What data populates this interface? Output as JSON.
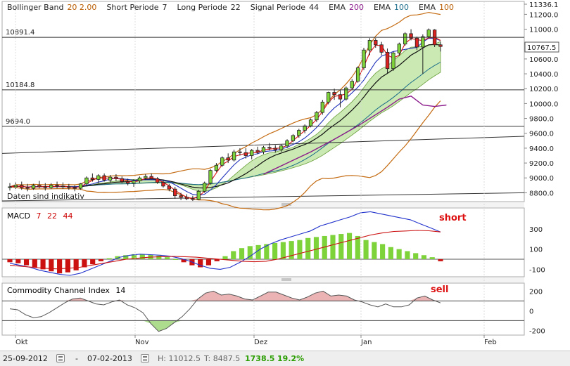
{
  "header": {
    "indicators": [
      {
        "label": "Bollinger Band",
        "params": "20  2.00",
        "color": "#b85c00"
      },
      {
        "label": "Short Periode",
        "params": "7",
        "color": "#222222"
      },
      {
        "label": "Long Periode",
        "params": "22",
        "color": "#222222"
      },
      {
        "label": "Signal Periode",
        "params": "44",
        "color": "#222222"
      },
      {
        "label": "EMA",
        "params": "200",
        "color": "#8b1a8b"
      },
      {
        "label": "EMA",
        "params": "100",
        "color": "#1a6b8a"
      },
      {
        "label": "EMA",
        "params": "100",
        "color": "#b85c00"
      }
    ]
  },
  "notice": "Daten sind indikativ",
  "price_panel": {
    "y_ticks": [
      "11336.1",
      "11200.0",
      "11000.0",
      "10800.0",
      "10600.0",
      "10400.0",
      "10200.0",
      "10000.0",
      "9800.0",
      "9600.0",
      "9400.0",
      "9200.0",
      "9000.0",
      "8800.0"
    ],
    "h_levels": [
      {
        "label": "10891.4",
        "value": 10891.4
      },
      {
        "label": "10184.8",
        "value": 10184.8
      },
      {
        "label": "9694.0",
        "value": 9694.0
      }
    ],
    "current_price": "10767.5"
  },
  "macd_panel": {
    "title": "MACD",
    "params": [
      "7",
      "22",
      "44"
    ],
    "param_color": "#cc0000",
    "y_ticks": [
      "300",
      "100",
      "-100"
    ],
    "annotation": "short"
  },
  "cci_panel": {
    "title": "Commodity Channel Index",
    "param": "14",
    "y_ticks": [
      "200",
      "0",
      "-200"
    ],
    "annotation": "sell"
  },
  "x_axis": {
    "labels": [
      "Okt",
      "Nov",
      "Dez",
      "Jan",
      "Feb"
    ]
  },
  "footer": {
    "start_date": "25-09-2012",
    "separator": "-",
    "end_date": "07-02-2013",
    "high": "H: 11012.5",
    "low": "T: 8487.5",
    "change": "1738.5",
    "change_pct": "19.2%",
    "change_color": "#2a9d00"
  },
  "chart_data": {
    "type": "line",
    "title": "",
    "x_labels": [
      "Okt",
      "Nov",
      "Dez",
      "Jan",
      "Feb"
    ],
    "price_range": [
      8700,
      11336.1
    ],
    "candles": [
      [
        8870,
        8930,
        8830,
        8880
      ],
      [
        8880,
        8940,
        8850,
        8900
      ],
      [
        8900,
        8950,
        8840,
        8870
      ],
      [
        8870,
        8920,
        8820,
        8860
      ],
      [
        8860,
        8920,
        8840,
        8900
      ],
      [
        8900,
        8960,
        8860,
        8880
      ],
      [
        8880,
        8930,
        8830,
        8870
      ],
      [
        8870,
        8930,
        8850,
        8900
      ],
      [
        8900,
        8950,
        8860,
        8890
      ],
      [
        8890,
        8940,
        8850,
        8880
      ],
      [
        8880,
        8920,
        8840,
        8870
      ],
      [
        8870,
        8900,
        8820,
        8860
      ],
      [
        8860,
        8930,
        8840,
        8920
      ],
      [
        8920,
        9020,
        8900,
        9000
      ],
      [
        9000,
        9060,
        8950,
        8980
      ],
      [
        8980,
        9050,
        8930,
        9030
      ],
      [
        9030,
        9060,
        8950,
        8970
      ],
      [
        8970,
        9040,
        8940,
        9010
      ],
      [
        9010,
        9050,
        8960,
        8990
      ],
      [
        8990,
        9020,
        8930,
        8950
      ],
      [
        8950,
        8990,
        8900,
        8930
      ],
      [
        8930,
        8980,
        8880,
        8960
      ],
      [
        8960,
        9020,
        8930,
        9000
      ],
      [
        9000,
        9050,
        8970,
        9020
      ],
      [
        9020,
        9060,
        8980,
        8990
      ],
      [
        8990,
        9010,
        8920,
        8940
      ],
      [
        8940,
        8970,
        8870,
        8890
      ],
      [
        8890,
        8920,
        8820,
        8850
      ],
      [
        8850,
        8880,
        8720,
        8760
      ],
      [
        8760,
        8800,
        8700,
        8740
      ],
      [
        8740,
        8780,
        8700,
        8720
      ],
      [
        8720,
        8760,
        8690,
        8710
      ],
      [
        8710,
        8840,
        8700,
        8820
      ],
      [
        8820,
        8950,
        8800,
        8930
      ],
      [
        8930,
        9120,
        8910,
        9100
      ],
      [
        9100,
        9200,
        9080,
        9170
      ],
      [
        9170,
        9290,
        9150,
        9270
      ],
      [
        9270,
        9330,
        9200,
        9240
      ],
      [
        9240,
        9380,
        9220,
        9350
      ],
      [
        9350,
        9400,
        9300,
        9340
      ],
      [
        9340,
        9400,
        9260,
        9300
      ],
      [
        9300,
        9390,
        9250,
        9370
      ],
      [
        9370,
        9420,
        9320,
        9350
      ],
      [
        9350,
        9430,
        9320,
        9410
      ],
      [
        9410,
        9470,
        9370,
        9400
      ],
      [
        9400,
        9440,
        9340,
        9380
      ],
      [
        9380,
        9450,
        9350,
        9430
      ],
      [
        9430,
        9520,
        9400,
        9500
      ],
      [
        9500,
        9590,
        9480,
        9570
      ],
      [
        9570,
        9660,
        9540,
        9640
      ],
      [
        9640,
        9720,
        9600,
        9700
      ],
      [
        9700,
        9800,
        9680,
        9780
      ],
      [
        9780,
        9900,
        9750,
        9880
      ],
      [
        9880,
        10050,
        9850,
        10020
      ],
      [
        10020,
        10160,
        9990,
        10150
      ],
      [
        10150,
        10200,
        10050,
        10120
      ],
      [
        10120,
        10180,
        9950,
        10060
      ],
      [
        10060,
        10230,
        10040,
        10210
      ],
      [
        10210,
        10330,
        10190,
        10300
      ],
      [
        10300,
        10500,
        10280,
        10480
      ],
      [
        10480,
        10750,
        10450,
        10720
      ],
      [
        10720,
        10880,
        10650,
        10850
      ],
      [
        10850,
        10880,
        10750,
        10790
      ],
      [
        10790,
        10830,
        10650,
        10690
      ],
      [
        10690,
        10740,
        10400,
        10470
      ],
      [
        10470,
        10700,
        10440,
        10680
      ],
      [
        10680,
        10820,
        10640,
        10800
      ],
      [
        10800,
        10960,
        10780,
        10940
      ],
      [
        10940,
        11000,
        10850,
        10880
      ],
      [
        10880,
        10900,
        10720,
        10760
      ],
      [
        10760,
        10930,
        10400,
        10900
      ],
      [
        10900,
        11010,
        10880,
        10990
      ],
      [
        10990,
        11000,
        10760,
        10790
      ],
      [
        10790,
        10830,
        10700,
        10767.5
      ]
    ],
    "ema200": [
      [
        43,
        9050
      ],
      [
        47,
        9200
      ],
      [
        51,
        9350
      ],
      [
        55,
        9520
      ],
      [
        59,
        9700
      ],
      [
        62,
        9850
      ],
      [
        64,
        9950
      ],
      [
        66,
        10060
      ],
      [
        68,
        10100
      ],
      [
        70,
        9980
      ],
      [
        72,
        9960
      ],
      [
        74,
        9980
      ]
    ],
    "cci": [
      20,
      10,
      -40,
      -70,
      -60,
      -20,
      30,
      80,
      120,
      130,
      100,
      70,
      60,
      90,
      110,
      60,
      30,
      -20,
      -130,
      -210,
      -180,
      -120,
      -60,
      20,
      120,
      180,
      200,
      160,
      170,
      150,
      120,
      110,
      150,
      190,
      190,
      160,
      130,
      110,
      140,
      180,
      200,
      150,
      160,
      150,
      110,
      90,
      60,
      40,
      70,
      40,
      40,
      60,
      130,
      150,
      110,
      80
    ],
    "macd_hist": [
      -30,
      -40,
      -60,
      -80,
      -100,
      -120,
      -140,
      -130,
      -110,
      -80,
      -50,
      -20,
      10,
      30,
      40,
      50,
      50,
      45,
      35,
      20,
      0,
      -30,
      -60,
      -80,
      -60,
      -20,
      30,
      80,
      110,
      130,
      140,
      150,
      160,
      170,
      180,
      190,
      210,
      220,
      230,
      240,
      250,
      260,
      230,
      190,
      170,
      150,
      120,
      100,
      80,
      60,
      40,
      20,
      -20
    ],
    "macd_line": [
      -40,
      -60,
      -80,
      -110,
      -130,
      -150,
      -160,
      -140,
      -100,
      -60,
      -20,
      20,
      40,
      50,
      45,
      40,
      30,
      10,
      -20,
      -60,
      -90,
      -100,
      -80,
      -30,
      30,
      100,
      150,
      190,
      220,
      250,
      280,
      330,
      360,
      390,
      420,
      460,
      470,
      450,
      430,
      410,
      390,
      350,
      310,
      270
    ],
    "signal_line": [
      -60,
      -70,
      -80,
      -90,
      -95,
      -90,
      -80,
      -60,
      -40,
      -20,
      0,
      10,
      20,
      25,
      28,
      25,
      20,
      10,
      0,
      -10,
      -20,
      -25,
      -20,
      0,
      30,
      60,
      90,
      120,
      150,
      180,
      210,
      240,
      260,
      275,
      280,
      285,
      282,
      270
    ]
  }
}
